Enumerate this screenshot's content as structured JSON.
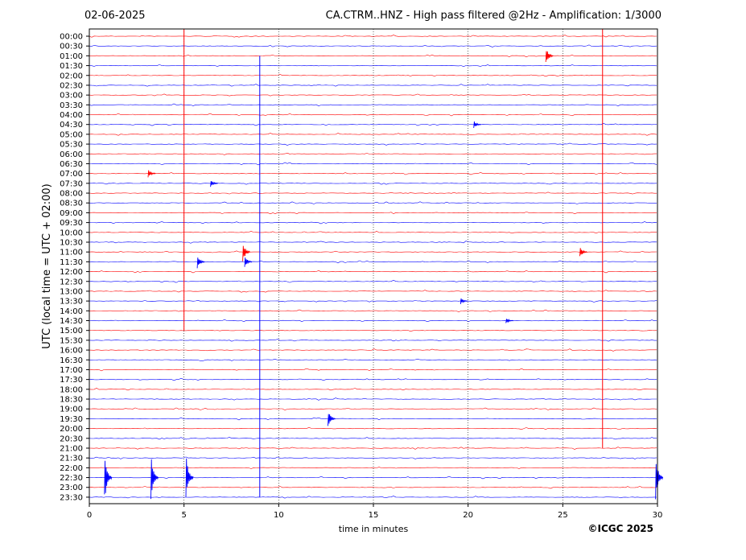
{
  "header": {
    "date": "02-06-2025",
    "title": "CA.CTRM..HNZ - High pass filtered @2Hz - Amplification: 1/3000"
  },
  "footer": {
    "copyright": "©ICGC 2025"
  },
  "chart_data": {
    "type": "line",
    "xlabel": "time in minutes",
    "ylabel": "UTC (local time = UTC + 02:00)",
    "xlim": [
      0,
      30
    ],
    "x_ticks": [
      0,
      5,
      10,
      15,
      20,
      25,
      30
    ],
    "grid_x": [
      5,
      10,
      15,
      20,
      25
    ],
    "row_labels": [
      "00:00",
      "00:30",
      "01:00",
      "01:30",
      "02:00",
      "02:30",
      "03:00",
      "03:30",
      "04:00",
      "04:30",
      "05:00",
      "05:30",
      "06:00",
      "06:30",
      "07:00",
      "07:30",
      "08:00",
      "08:30",
      "09:00",
      "09:30",
      "10:00",
      "10:30",
      "11:00",
      "11:30",
      "12:00",
      "12:30",
      "13:00",
      "13:30",
      "14:00",
      "14:30",
      "15:00",
      "15:30",
      "16:00",
      "16:30",
      "17:00",
      "17:30",
      "18:00",
      "18:30",
      "19:00",
      "19:30",
      "20:00",
      "20:30",
      "21:00",
      "21:30",
      "22:00",
      "22:30",
      "23:00",
      "23:30"
    ],
    "trace_colors": [
      "#ff0000",
      "#0000ff"
    ],
    "long_spikes": [
      {
        "x": 5.0,
        "from": "00:00",
        "to": "15:00",
        "color": "#ff0000"
      },
      {
        "x": 9.0,
        "from": "01:00",
        "to": "23:30",
        "color": "#0000ff"
      },
      {
        "x": 27.1,
        "from": "00:00",
        "to": "21:00",
        "color": "#ff0000"
      }
    ],
    "events": [
      {
        "row": "01:00",
        "x": 24.1,
        "amp": 12
      },
      {
        "row": "04:30",
        "x": 20.3,
        "amp": 5
      },
      {
        "row": "07:00",
        "x": 3.1,
        "amp": 6
      },
      {
        "row": "07:30",
        "x": 6.4,
        "amp": 5
      },
      {
        "row": "11:00",
        "x": 8.1,
        "amp": 14
      },
      {
        "row": "11:00",
        "x": 25.9,
        "amp": 8
      },
      {
        "row": "11:30",
        "x": 5.7,
        "amp": 9
      },
      {
        "row": "11:30",
        "x": 8.2,
        "amp": 8
      },
      {
        "row": "13:30",
        "x": 19.6,
        "amp": 4
      },
      {
        "row": "14:30",
        "x": 22.0,
        "amp": 4
      },
      {
        "row": "19:30",
        "x": 12.6,
        "amp": 12
      },
      {
        "row": "22:30",
        "x": 0.8,
        "amp": 32
      },
      {
        "row": "22:30",
        "x": 3.25,
        "amp": 30
      },
      {
        "row": "22:30",
        "x": 5.1,
        "amp": 32
      },
      {
        "row": "22:30",
        "x": 29.9,
        "amp": 30
      }
    ]
  }
}
